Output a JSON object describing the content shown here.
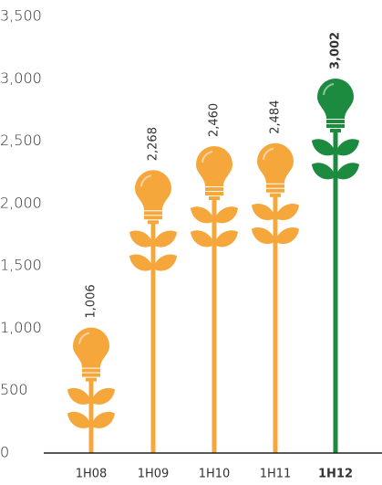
{
  "chart_data": {
    "type": "bulb",
    "categories": [
      "1H08",
      "1H09",
      "1H10",
      "1H11",
      "1H12"
    ],
    "values": [
      1006,
      2268,
      2460,
      2484,
      3002
    ],
    "value_labels": [
      "1,006",
      "2,268",
      "2,460",
      "2,484",
      "3,002"
    ],
    "colors": [
      "#f5a73b",
      "#f5a73b",
      "#f5a73b",
      "#f5a73b",
      "#1c8b3f"
    ],
    "bold": [
      false,
      false,
      false,
      false,
      true
    ],
    "ylim": [
      0,
      3500
    ],
    "yticks": [
      0,
      500,
      {
        "value": 1000,
        "label": "1,000"
      },
      {
        "value": 1500,
        "label": "1,500"
      },
      {
        "value": 2000,
        "label": "2,000"
      },
      {
        "value": 2500,
        "label": "2,500"
      },
      {
        "value": 3000,
        "label": "3,000"
      },
      {
        "value": 3500,
        "label": "3,500"
      }
    ]
  }
}
